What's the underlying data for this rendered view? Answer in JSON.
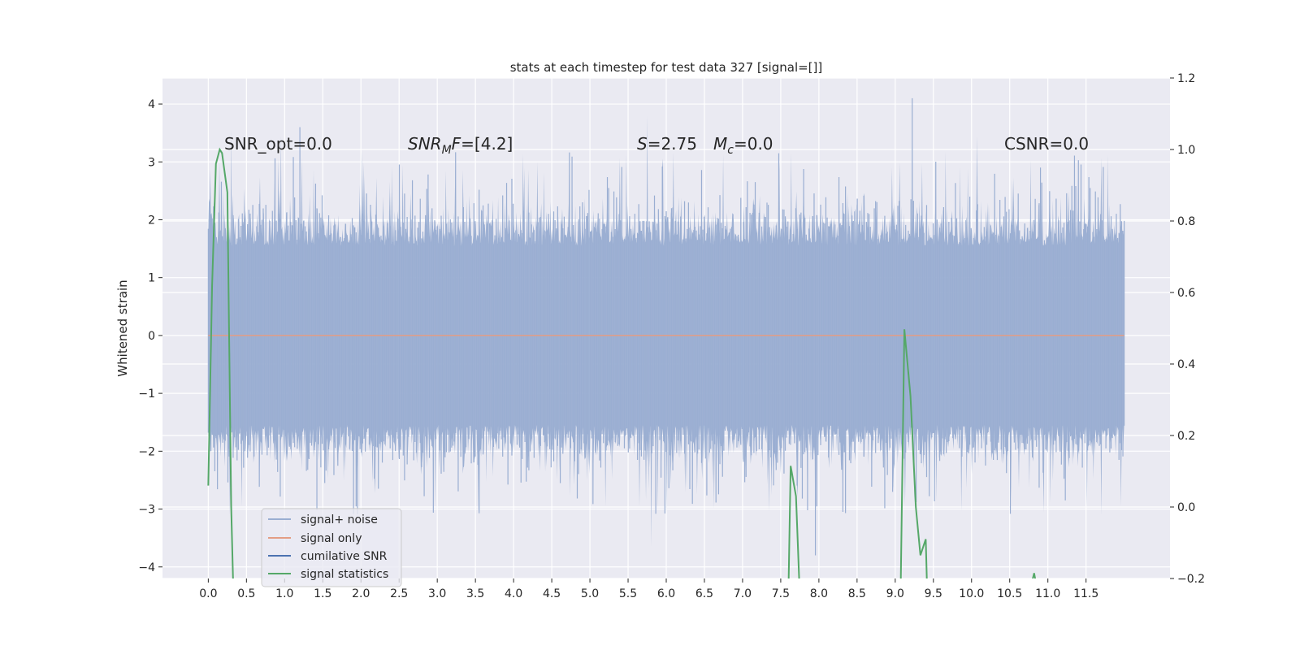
{
  "chart_data": {
    "type": "line",
    "title": "stats at each timestep for test data 327 [signal=[]]",
    "xlabel": "",
    "ylabel": "Whitened strain",
    "xlim": [
      -0.6,
      12.6
    ],
    "ylim": [
      -4.2,
      4.45
    ],
    "y2lim": [
      -0.2,
      1.2
    ],
    "grid": true,
    "legend_position": "lower-left",
    "x_ticks": [
      "0.0",
      "0.5",
      "1.0",
      "1.5",
      "2.0",
      "2.5",
      "3.0",
      "3.5",
      "4.0",
      "4.5",
      "5.0",
      "5.5",
      "6.0",
      "6.5",
      "7.0",
      "7.5",
      "8.0",
      "8.5",
      "9.0",
      "9.5",
      "10.0",
      "10.5",
      "11.0",
      "11.5"
    ],
    "y_ticks": [
      "4",
      "3",
      "2",
      "1",
      "0",
      "−1",
      "−2",
      "−3",
      "−4"
    ],
    "y2_ticks": [
      "1.2",
      "1.0",
      "0.8",
      "0.6",
      "0.4",
      "0.2",
      "0.0",
      "−0.2"
    ],
    "annotations": {
      "snr_opt": "SNR_opt=0.0",
      "snr_mf": "=[4.2]",
      "s_stat": "=2.75",
      "mc": "=0.0",
      "csnr": "CSNR=0.0"
    },
    "series": [
      {
        "name": "signal+ noise",
        "color": "#9aaed2",
        "axis": "left",
        "x_range": [
          0.0,
          12.0
        ],
        "y_envelope": [
          -2.0,
          2.0
        ],
        "peaks": [
          [
            0.3,
            3.55
          ],
          [
            0.95,
            3.45
          ],
          [
            1.2,
            3.6
          ],
          [
            5.75,
            3.8
          ],
          [
            5.8,
            -3.65
          ],
          [
            9.22,
            4.1
          ],
          [
            7.95,
            -3.8
          ],
          [
            10.07,
            3.45
          ],
          [
            11.7,
            -3.1
          ]
        ]
      },
      {
        "name": "signal only",
        "color": "#e39d84",
        "axis": "left",
        "x": [
          0.0,
          12.0
        ],
        "y": [
          0.0,
          0.0
        ]
      },
      {
        "name": "cumilative SNR",
        "color": "#4c72b0",
        "axis": "right",
        "x": [],
        "y": []
      },
      {
        "name": "signal statistics",
        "color": "#55a868",
        "axis": "right",
        "x": [
          0.0,
          0.05,
          0.1,
          0.15,
          0.18,
          0.25,
          0.3,
          0.33,
          7.6,
          7.63,
          7.7,
          7.75,
          9.07,
          9.12,
          9.2,
          9.27,
          9.33,
          9.4,
          9.42,
          10.78,
          10.82,
          10.85
        ],
        "y": [
          0.06,
          0.62,
          0.96,
          1.0,
          0.99,
          0.88,
          0.0,
          -0.25,
          -0.25,
          0.115,
          0.03,
          -0.25,
          -0.25,
          0.497,
          0.31,
          0.0,
          -0.135,
          -0.09,
          -0.25,
          -0.22,
          -0.185,
          -0.22
        ]
      }
    ]
  }
}
